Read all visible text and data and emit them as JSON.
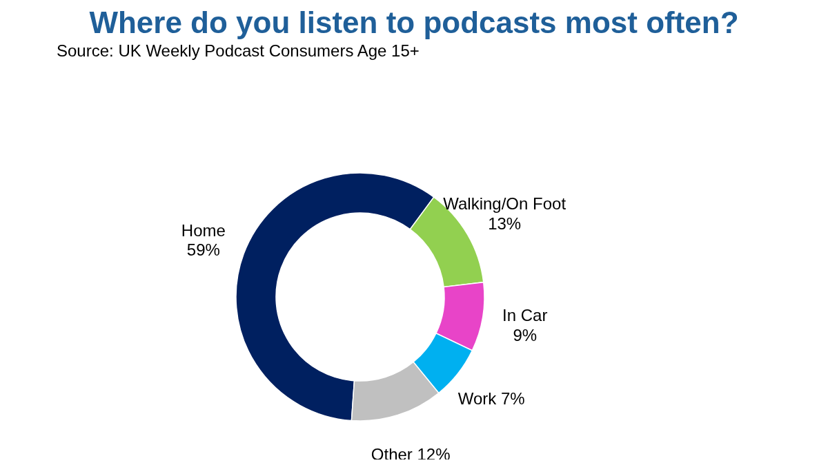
{
  "chart_data": {
    "type": "donut",
    "title": "Where do you listen to podcasts most often?",
    "subtitle": "Source: UK Weekly Podcast Consumers Age 15+",
    "categories": [
      "Home",
      "Walking/On Foot",
      "In Car",
      "Work",
      "Other"
    ],
    "values": [
      59,
      13,
      9,
      7,
      12
    ],
    "colors": [
      "#002060",
      "#92d050",
      "#e844c8",
      "#00b0f0",
      "#c0c0c0"
    ],
    "value_labels": [
      "59%",
      "13%",
      "9%",
      "7%",
      "12%"
    ]
  }
}
